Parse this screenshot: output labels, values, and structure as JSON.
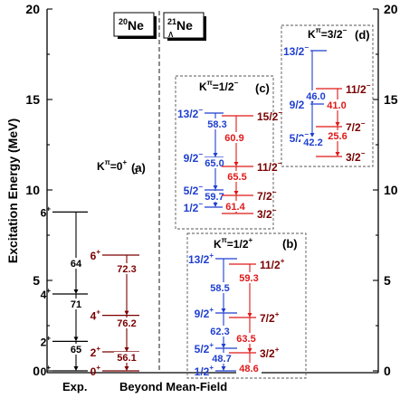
{
  "figure": {
    "y_axis": {
      "label": "Excitation Energy (MeV)",
      "min": 0,
      "max": 20,
      "ticks": [
        0,
        5,
        10,
        15,
        20
      ]
    },
    "x_labels": {
      "exp": "Exp.",
      "bmf": "Beyond Mean-Field"
    },
    "nuclei": [
      {
        "mass": "20",
        "symbol": "Ne",
        "sub": ""
      },
      {
        "mass": "21",
        "symbol": "Ne",
        "sub": "Λ"
      }
    ],
    "colors": {
      "black": "#000000",
      "darkred": "#7a0000",
      "blue": "#1f3fd0",
      "red": "#e01818"
    },
    "panels": [
      {
        "id": "a",
        "tag": "(a)",
        "k_base": "K",
        "k_pi": "π",
        "k_eq": "=0",
        "k_sup": "+",
        "k_sub": "1",
        "columns": [
          {
            "id": "exp",
            "color": "black",
            "side": "left",
            "levels": [
              {
                "spin": "0",
                "parity": "+",
                "e": 0
              },
              {
                "spin": "2",
                "parity": "+",
                "e": 1.63
              },
              {
                "spin": "4",
                "parity": "+",
                "e": 4.25
              },
              {
                "spin": "6",
                "parity": "+",
                "e": 8.78
              }
            ],
            "transitions": [
              {
                "from": 1,
                "to": 0,
                "value": "65"
              },
              {
                "from": 2,
                "to": 1,
                "value": "71"
              },
              {
                "from": 3,
                "to": 2,
                "value": "64"
              }
            ]
          },
          {
            "id": "bmf-ne20",
            "color": "darkred",
            "side": "left",
            "levels": [
              {
                "spin": "0",
                "parity": "+",
                "e": 0
              },
              {
                "spin": "2",
                "parity": "+",
                "e": 1.05
              },
              {
                "spin": "4",
                "parity": "+",
                "e": 3.07
              },
              {
                "spin": "6",
                "parity": "+",
                "e": 6.4
              }
            ],
            "transitions": [
              {
                "from": 1,
                "to": 0,
                "value": "56.1"
              },
              {
                "from": 2,
                "to": 1,
                "value": "76.2"
              },
              {
                "from": 3,
                "to": 2,
                "value": "72.3"
              }
            ]
          }
        ]
      },
      {
        "id": "b",
        "tag": "(b)",
        "k_base": "K",
        "k_pi": "π",
        "k_eq": "=1/2",
        "k_sup": "+",
        "k_sub": "",
        "columns": [
          {
            "id": "b-blue",
            "color": "blue",
            "side": "left",
            "levels": [
              {
                "spin": "1/2",
                "parity": "+",
                "e": 0
              },
              {
                "spin": "5/2",
                "parity": "+",
                "e": 1.25
              },
              {
                "spin": "9/2",
                "parity": "+",
                "e": 3.2
              },
              {
                "spin": "13/2",
                "parity": "+",
                "e": 6.2
              }
            ],
            "transitions": [
              {
                "from": 1,
                "to": 0,
                "value": "48.7"
              },
              {
                "from": 2,
                "to": 1,
                "value": "62.3"
              },
              {
                "from": 3,
                "to": 2,
                "value": "58.5"
              }
            ]
          },
          {
            "id": "b-red",
            "color": "red",
            "side": "right",
            "label_color": "darkred",
            "levels": [
              {
                "spin": "3/2",
                "parity": "+",
                "e": 1.0
              },
              {
                "spin": "7/2",
                "parity": "+",
                "e": 2.95
              },
              {
                "spin": "11/2",
                "parity": "+",
                "e": 5.9
              }
            ],
            "transitions": [
              {
                "from": 1,
                "to": 0,
                "value": "48.6"
              },
              {
                "from": 2,
                "to": 1,
                "value": "63.5"
              },
              {
                "from": 2,
                "to": 1,
                "value": "59.3"
              }
            ]
          }
        ]
      },
      {
        "id": "c",
        "tag": "(c)",
        "k_base": "K",
        "k_pi": "π",
        "k_eq": "=1/2",
        "k_sup": "−",
        "k_sub": "",
        "columns": [
          {
            "id": "c-blue",
            "color": "blue",
            "side": "left",
            "levels": [
              {
                "spin": "1/2",
                "parity": "−",
                "e": 9.05
              },
              {
                "spin": "5/2",
                "parity": "−",
                "e": 10.0
              },
              {
                "spin": "9/2",
                "parity": "−",
                "e": 11.8
              },
              {
                "spin": "13/2",
                "parity": "−",
                "e": 14.25
              }
            ],
            "transitions": [
              {
                "from": 1,
                "to": 0,
                "value": "59.7"
              },
              {
                "from": 2,
                "to": 1,
                "value": "65.0"
              },
              {
                "from": 3,
                "to": 2,
                "value": "58.3"
              }
            ]
          },
          {
            "id": "c-red",
            "color": "red",
            "side": "right",
            "label_color": "darkred",
            "levels": [
              {
                "spin": "3/2",
                "parity": "−",
                "e": 8.7
              },
              {
                "spin": "7/2",
                "parity": "−",
                "e": 9.7
              },
              {
                "spin": "11/2",
                "parity": "−",
                "e": 11.3
              },
              {
                "spin": "15/2",
                "parity": "−",
                "e": 14.1
              }
            ],
            "transitions": [
              {
                "from": 1,
                "to": 0,
                "value": "61.4"
              },
              {
                "from": 2,
                "to": 1,
                "value": "65.5"
              },
              {
                "from": 3,
                "to": 2,
                "value": "60.9"
              }
            ]
          }
        ]
      },
      {
        "id": "d",
        "tag": "(d)",
        "k_base": "K",
        "k_pi": "π",
        "k_eq": "=3/2",
        "k_sup": "−",
        "k_sub": "",
        "columns": [
          {
            "id": "d-blue",
            "color": "blue",
            "side": "left",
            "levels": [
              {
                "spin": "5/2",
                "parity": "−",
                "e": 12.9
              },
              {
                "spin": "9/2",
                "parity": "−",
                "e": 14.75
              },
              {
                "spin": "13/2",
                "parity": "−",
                "e": 17.7
              }
            ],
            "transitions": [
              {
                "from": 1,
                "to": 0,
                "value": "42.2"
              },
              {
                "from": 2,
                "to": 1,
                "value": "46.0"
              }
            ]
          },
          {
            "id": "d-red",
            "color": "red",
            "side": "right",
            "label_color": "darkred",
            "levels": [
              {
                "spin": "3/2",
                "parity": "−",
                "e": 11.85
              },
              {
                "spin": "7/2",
                "parity": "−",
                "e": 13.5
              },
              {
                "spin": "11/2",
                "parity": "−",
                "e": 15.6
              }
            ],
            "transitions": [
              {
                "from": 1,
                "to": 0,
                "value": "25.6"
              },
              {
                "from": 2,
                "to": 1,
                "value": "41.0"
              }
            ]
          }
        ]
      }
    ]
  }
}
